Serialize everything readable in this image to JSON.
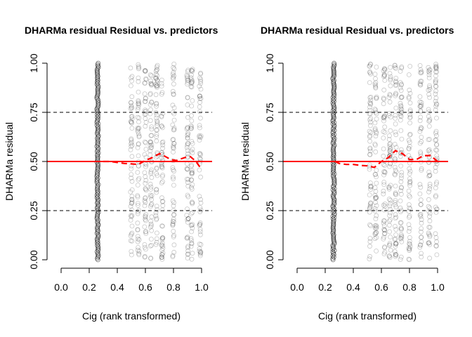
{
  "chart_data": [
    {
      "type": "scatter",
      "title": "DHARMa residual Residual vs. predictors",
      "xlabel": "Cig (rank transformed)",
      "ylabel": "DHARMa residual",
      "xlim": [
        0.0,
        1.0
      ],
      "ylim": [
        0.0,
        1.0
      ],
      "x_ticks": [
        "0.0",
        "0.2",
        "0.4",
        "0.6",
        "0.8",
        "1.0"
      ],
      "y_ticks": [
        "0.00",
        "0.25",
        "0.50",
        "0.75",
        "1.00"
      ],
      "point_columns": [
        0.26,
        0.5,
        0.55,
        0.6,
        0.64,
        0.68,
        0.72,
        0.8,
        0.9,
        0.93,
        0.99
      ],
      "reference_lines": [
        {
          "y": 0.25,
          "style": "dashed",
          "color": "#000000"
        },
        {
          "y": 0.5,
          "style": "solid",
          "color": "#ff0000"
        },
        {
          "y": 0.75,
          "style": "dashed",
          "color": "#000000"
        }
      ],
      "smooth_line": {
        "color": "#ff0000",
        "style": "dashed",
        "x": [
          0.3,
          0.35,
          0.4,
          0.45,
          0.5,
          0.55,
          0.6,
          0.65,
          0.7,
          0.73,
          0.78,
          0.82,
          0.88,
          0.92,
          0.96,
          1.0
        ],
        "y": [
          0.5,
          0.5,
          0.495,
          0.49,
          0.488,
          0.485,
          0.505,
          0.52,
          0.54,
          0.53,
          0.51,
          0.505,
          0.52,
          0.525,
          0.5,
          0.46
        ]
      }
    },
    {
      "type": "scatter",
      "title": "DHARMa residual Residual vs. predictors",
      "xlabel": "Cig (rank transformed)",
      "ylabel": "DHARMa residual",
      "xlim": [
        0.0,
        1.0
      ],
      "ylim": [
        0.0,
        1.0
      ],
      "x_ticks": [
        "0.0",
        "0.2",
        "0.4",
        "0.6",
        "0.8",
        "1.0"
      ],
      "y_ticks": [
        "0.00",
        "0.25",
        "0.50",
        "0.75",
        "1.00"
      ],
      "point_columns": [
        0.26,
        0.52,
        0.56,
        0.62,
        0.66,
        0.7,
        0.74,
        0.8,
        0.88,
        0.94,
        0.99
      ],
      "reference_lines": [
        {
          "y": 0.25,
          "style": "dashed",
          "color": "#000000"
        },
        {
          "y": 0.5,
          "style": "solid",
          "color": "#ff0000"
        },
        {
          "y": 0.75,
          "style": "dashed",
          "color": "#000000"
        }
      ],
      "smooth_line": {
        "color": "#ff0000",
        "style": "dashed",
        "x": [
          0.27,
          0.3,
          0.35,
          0.4,
          0.45,
          0.5,
          0.55,
          0.6,
          0.65,
          0.7,
          0.75,
          0.8,
          0.85,
          0.9,
          0.95,
          1.0
        ],
        "y": [
          0.5,
          0.49,
          0.485,
          0.485,
          0.48,
          0.478,
          0.47,
          0.5,
          0.52,
          0.555,
          0.54,
          0.51,
          0.51,
          0.53,
          0.53,
          0.5
        ]
      }
    }
  ]
}
